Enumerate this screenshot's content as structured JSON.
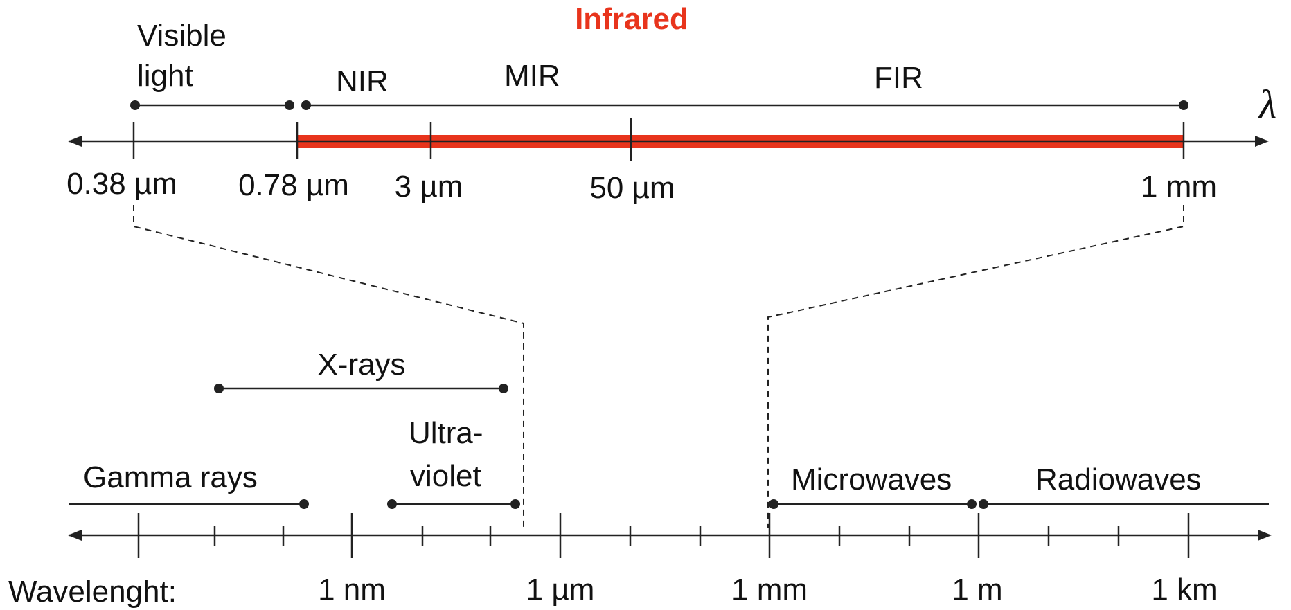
{
  "title": "Infrared",
  "axis_symbol": "λ",
  "colors": {
    "infrared": "#e8341c",
    "ink": "#222222"
  },
  "top": {
    "bands": [
      {
        "id": "visible",
        "line1": "Visible",
        "line2": "light"
      },
      {
        "id": "nir",
        "label": "NIR"
      },
      {
        "id": "mir",
        "label": "MIR"
      },
      {
        "id": "fir",
        "label": "FIR"
      }
    ],
    "ticks": [
      "0.38 µm",
      "0.78 µm",
      "3 µm",
      "50 µm",
      "1 mm"
    ]
  },
  "bottom": {
    "bands": [
      {
        "id": "gamma",
        "label": "Gamma rays"
      },
      {
        "id": "xrays",
        "label": "X-rays"
      },
      {
        "id": "uv",
        "line1": "Ultra-",
        "line2": "violet"
      },
      {
        "id": "microwaves",
        "label": "Microwaves"
      },
      {
        "id": "radiowaves",
        "label": "Radiowaves"
      }
    ],
    "axis_label": "Wavelenght:",
    "ticks": [
      "1 nm",
      "1 µm",
      "1 mm",
      "1 m",
      "1 km"
    ]
  }
}
